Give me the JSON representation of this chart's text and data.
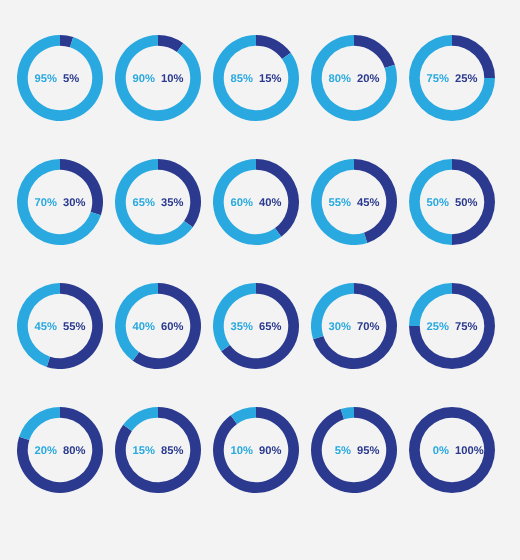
{
  "chart_data": [
    {
      "type": "donut",
      "categories": [
        null,
        null
      ],
      "values": [
        5,
        95
      ],
      "colors": [
        "#2b3a8f",
        "#29a9e0"
      ],
      "annotations": [
        "95%",
        "5%"
      ]
    },
    {
      "type": "donut",
      "categories": [
        null,
        null
      ],
      "values": [
        10,
        90
      ],
      "colors": [
        "#2b3a8f",
        "#29a9e0"
      ],
      "annotations": [
        "90%",
        "10%"
      ]
    },
    {
      "type": "donut",
      "categories": [
        null,
        null
      ],
      "values": [
        15,
        85
      ],
      "colors": [
        "#2b3a8f",
        "#29a9e0"
      ],
      "annotations": [
        "85%",
        "15%"
      ]
    },
    {
      "type": "donut",
      "categories": [
        null,
        null
      ],
      "values": [
        20,
        80
      ],
      "colors": [
        "#2b3a8f",
        "#29a9e0"
      ],
      "annotations": [
        "80%",
        "20%"
      ]
    },
    {
      "type": "donut",
      "categories": [
        null,
        null
      ],
      "values": [
        25,
        75
      ],
      "colors": [
        "#2b3a8f",
        "#29a9e0"
      ],
      "annotations": [
        "75%",
        "25%"
      ]
    },
    {
      "type": "donut",
      "categories": [
        null,
        null
      ],
      "values": [
        30,
        70
      ],
      "colors": [
        "#2b3a8f",
        "#29a9e0"
      ],
      "annotations": [
        "70%",
        "30%"
      ]
    },
    {
      "type": "donut",
      "categories": [
        null,
        null
      ],
      "values": [
        35,
        65
      ],
      "colors": [
        "#2b3a8f",
        "#29a9e0"
      ],
      "annotations": [
        "65%",
        "35%"
      ]
    },
    {
      "type": "donut",
      "categories": [
        null,
        null
      ],
      "values": [
        40,
        60
      ],
      "colors": [
        "#2b3a8f",
        "#29a9e0"
      ],
      "annotations": [
        "60%",
        "40%"
      ]
    },
    {
      "type": "donut",
      "categories": [
        null,
        null
      ],
      "values": [
        45,
        55
      ],
      "colors": [
        "#2b3a8f",
        "#29a9e0"
      ],
      "annotations": [
        "55%",
        "45%"
      ]
    },
    {
      "type": "donut",
      "categories": [
        null,
        null
      ],
      "values": [
        50,
        50
      ],
      "colors": [
        "#2b3a8f",
        "#29a9e0"
      ],
      "annotations": [
        "50%",
        "50%"
      ]
    },
    {
      "type": "donut",
      "categories": [
        null,
        null
      ],
      "values": [
        55,
        45
      ],
      "colors": [
        "#2b3a8f",
        "#29a9e0"
      ],
      "annotations": [
        "45%",
        "55%"
      ]
    },
    {
      "type": "donut",
      "categories": [
        null,
        null
      ],
      "values": [
        60,
        40
      ],
      "colors": [
        "#2b3a8f",
        "#29a9e0"
      ],
      "annotations": [
        "40%",
        "60%"
      ]
    },
    {
      "type": "donut",
      "categories": [
        null,
        null
      ],
      "values": [
        65,
        35
      ],
      "colors": [
        "#2b3a8f",
        "#29a9e0"
      ],
      "annotations": [
        "35%",
        "65%"
      ]
    },
    {
      "type": "donut",
      "categories": [
        null,
        null
      ],
      "values": [
        70,
        30
      ],
      "colors": [
        "#2b3a8f",
        "#29a9e0"
      ],
      "annotations": [
        "30%",
        "70%"
      ]
    },
    {
      "type": "donut",
      "categories": [
        null,
        null
      ],
      "values": [
        75,
        25
      ],
      "colors": [
        "#2b3a8f",
        "#29a9e0"
      ],
      "annotations": [
        "25%",
        "75%"
      ]
    },
    {
      "type": "donut",
      "categories": [
        null,
        null
      ],
      "values": [
        80,
        20
      ],
      "colors": [
        "#2b3a8f",
        "#29a9e0"
      ],
      "annotations": [
        "20%",
        "80%"
      ]
    },
    {
      "type": "donut",
      "categories": [
        null,
        null
      ],
      "values": [
        85,
        15
      ],
      "colors": [
        "#2b3a8f",
        "#29a9e0"
      ],
      "annotations": [
        "15%",
        "85%"
      ]
    },
    {
      "type": "donut",
      "categories": [
        null,
        null
      ],
      "values": [
        90,
        10
      ],
      "colors": [
        "#2b3a8f",
        "#29a9e0"
      ],
      "annotations": [
        "10%",
        "90%"
      ]
    },
    {
      "type": "donut",
      "categories": [
        null,
        null
      ],
      "values": [
        95,
        5
      ],
      "colors": [
        "#2b3a8f",
        "#29a9e0"
      ],
      "annotations": [
        "5%",
        "95%"
      ]
    },
    {
      "type": "donut",
      "categories": [
        null,
        null
      ],
      "values": [
        100,
        0
      ],
      "colors": [
        "#2b3a8f",
        "#29a9e0"
      ],
      "annotations": [
        "0%",
        "100%"
      ]
    }
  ]
}
